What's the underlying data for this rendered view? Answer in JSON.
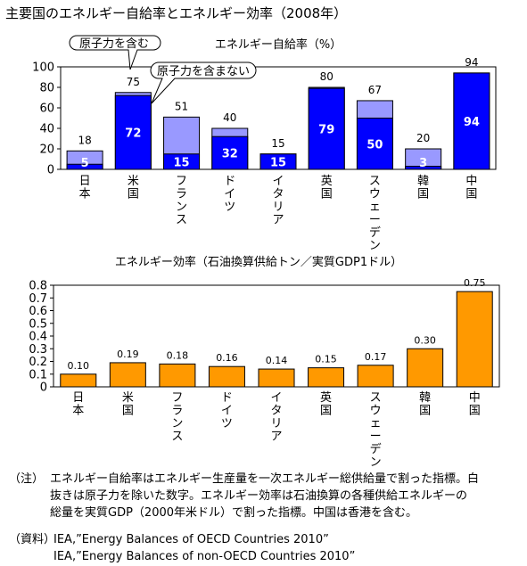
{
  "title": "主要国のエネルギー自給率とエネルギー効率（2008年）",
  "chart_data": [
    {
      "type": "bar",
      "title": "エネルギー自給率（%）",
      "categories": [
        "日本",
        "米国",
        "フランス",
        "ドイツ",
        "イタリア",
        "英国",
        "スウェーデン",
        "韓国",
        "中国"
      ],
      "series": [
        {
          "values": [
            5,
            72,
            15,
            32,
            15,
            79,
            50,
            3,
            94
          ],
          "color": "#0000ff"
        },
        {
          "values": [
            18,
            75,
            51,
            40,
            15,
            80,
            67,
            20,
            94
          ],
          "color": "#9999ff"
        }
      ],
      "stacked_overlay": true,
      "yticks": [
        0,
        20,
        40,
        60,
        80,
        100
      ],
      "ylim": [
        0,
        100
      ],
      "callouts": [
        "原子力を含む",
        "原子力を含まない"
      ]
    },
    {
      "type": "bar",
      "title": "エネルギー効率（石油換算供給トン／実質GDP1ドル）",
      "categories": [
        "日本",
        "米国",
        "フランス",
        "ドイツ",
        "イタリア",
        "英国",
        "スウェーデン",
        "韓国",
        "中国"
      ],
      "series": [
        {
          "values": [
            0.1,
            0.19,
            0.18,
            0.16,
            0.14,
            0.15,
            0.17,
            0.3,
            0.75
          ],
          "color": "#ff9900"
        }
      ],
      "value_labels": [
        "0.10",
        "0.19",
        "0.18",
        "0.16",
        "0.14",
        "0.15",
        "0.17",
        "0.30",
        "0.75"
      ],
      "yticks": [
        0,
        0.1,
        0.2,
        0.3,
        0.4,
        0.5,
        0.6,
        0.7,
        0.8
      ],
      "ytick_labels": [
        "0",
        "0.1",
        "0.2",
        "0.3",
        "0.4",
        "0.5",
        "0.6",
        "0.7",
        "0.8"
      ],
      "ylim": [
        0,
        0.8
      ]
    }
  ],
  "note": {
    "label": "（注）",
    "lines": [
      "エネルギー自給率はエネルギー生産量を一次エネルギー総供給量で割った指標。白",
      "抜きは原子力を除いた数字。エネルギー効率は石油換算の各種供給エネルギーの",
      "総量を実質GDP（2000年米ドル）で割った指標。中国は香港を含む。"
    ]
  },
  "source": {
    "label": "（資料）",
    "lines": [
      "IEA,”Energy Balances of OECD Countries 2010”",
      "IEA,”Energy Balances of non-OECD Countries 2010”"
    ]
  }
}
